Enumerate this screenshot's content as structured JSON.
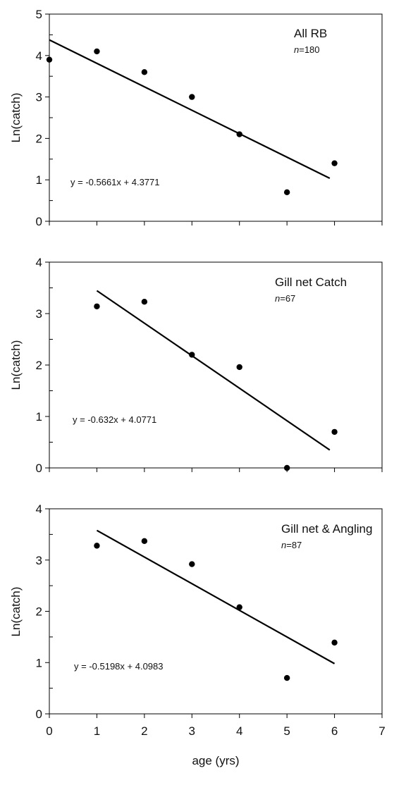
{
  "chart_data": [
    {
      "type": "scatter",
      "title": "All RB",
      "n_label": "n",
      "n_value": "=180",
      "equation": "y = -0.5661x + 4.3771",
      "ylabel": "Ln(catch)",
      "xlabel": "",
      "xlim": [
        0,
        7
      ],
      "ylim": [
        0,
        5
      ],
      "yticks": [
        "0",
        "1",
        "2",
        "3",
        "4",
        "5"
      ],
      "xticks": [],
      "x": [
        0,
        1,
        2,
        3,
        4,
        5,
        6
      ],
      "y": [
        3.9,
        4.1,
        3.6,
        3.0,
        2.1,
        0.7,
        1.4
      ],
      "trendline": {
        "slope": -0.5661,
        "intercept": 4.3771,
        "x_range": [
          0,
          5.9
        ]
      }
    },
    {
      "type": "scatter",
      "title": "Gill net Catch",
      "n_label": "n",
      "n_value": "=67",
      "equation": "y = -0.632x + 4.0771",
      "ylabel": "Ln(catch)",
      "xlabel": "",
      "xlim": [
        0,
        7
      ],
      "ylim": [
        0,
        4
      ],
      "yticks": [
        "0",
        "1",
        "2",
        "3",
        "4"
      ],
      "xticks": [],
      "x": [
        1,
        2,
        3,
        4,
        5,
        6
      ],
      "y": [
        3.14,
        3.23,
        2.2,
        1.96,
        0.0,
        0.7
      ],
      "trendline": {
        "slope": -0.632,
        "intercept": 4.0771,
        "x_range": [
          1,
          5.9
        ]
      }
    },
    {
      "type": "scatter",
      "title": "Gill net & Angling",
      "n_label": "n",
      "n_value": "=87",
      "equation": "y = -0.5198x + 4.0983",
      "ylabel": "Ln(catch)",
      "xlabel": "age (yrs)",
      "xlim": [
        0,
        7
      ],
      "ylim": [
        0,
        4
      ],
      "yticks": [
        "0",
        "1",
        "2",
        "3",
        "4"
      ],
      "xticks": [
        "0",
        "1",
        "2",
        "3",
        "4",
        "5",
        "6",
        "7"
      ],
      "x": [
        1,
        2,
        3,
        4,
        5,
        6
      ],
      "y": [
        3.28,
        3.37,
        2.92,
        2.08,
        0.7,
        1.39
      ],
      "trendline": {
        "slope": -0.5198,
        "intercept": 4.0983,
        "x_range": [
          1,
          6
        ]
      }
    }
  ]
}
